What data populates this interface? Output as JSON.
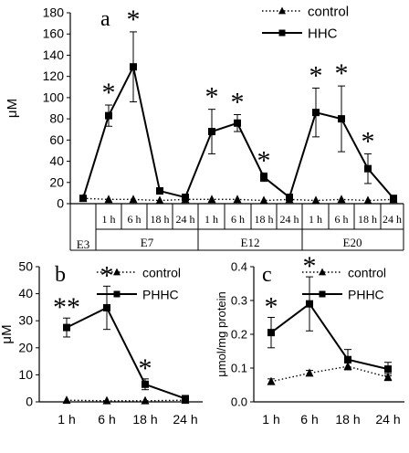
{
  "panels": {
    "a": {
      "letter": "a"
    },
    "b": {
      "letter": "b"
    },
    "c": {
      "letter": "c"
    }
  },
  "chart_data": [
    {
      "id": "a",
      "type": "line",
      "ylabel": "μM",
      "ylim": [
        0,
        180
      ],
      "yticks": [
        0,
        20,
        40,
        60,
        80,
        100,
        120,
        140,
        160,
        180
      ],
      "x_slots": [
        "E3",
        "1 h",
        "6 h",
        "18 h",
        "24 h",
        "1 h",
        "6 h",
        "18 h",
        "24 h",
        "1 h",
        "6 h",
        "18 h",
        "24 h"
      ],
      "group_labels": [
        "E3",
        "E7",
        "E12",
        "E20"
      ],
      "segments": [
        [
          0,
          4
        ],
        [
          4,
          8
        ],
        [
          8,
          12
        ]
      ],
      "legend": {
        "position": "top-right",
        "entries": [
          "control",
          "HHC"
        ]
      },
      "series": [
        {
          "name": "control",
          "marker": "triangle",
          "style": "dotted",
          "values": [
            5,
            4,
            4,
            3,
            4,
            4,
            4,
            3,
            4,
            3,
            4,
            3,
            4
          ]
        },
        {
          "name": "HHC",
          "marker": "square",
          "style": "solid",
          "values": [
            5,
            83,
            129,
            12,
            6,
            68,
            76,
            25,
            6,
            86,
            80,
            33,
            5
          ],
          "errors": [
            0,
            10,
            33,
            3,
            0,
            21,
            8,
            4,
            0,
            23,
            31,
            14,
            0
          ]
        }
      ],
      "significance": [
        {
          "slot": 1,
          "text": "*"
        },
        {
          "slot": 2,
          "text": "*"
        },
        {
          "slot": 5,
          "text": "*"
        },
        {
          "slot": 6,
          "text": "*"
        },
        {
          "slot": 7,
          "text": "*"
        },
        {
          "slot": 9,
          "text": "*"
        },
        {
          "slot": 10,
          "text": "*"
        },
        {
          "slot": 11,
          "text": "*"
        }
      ]
    },
    {
      "id": "b",
      "type": "line",
      "ylabel": "μM",
      "ylim": [
        0,
        50
      ],
      "yticks": [
        0,
        10,
        20,
        30,
        40,
        50
      ],
      "categories": [
        "1 h",
        "6 h",
        "18 h",
        "24 h"
      ],
      "legend": {
        "position": "top-right",
        "entries": [
          "control",
          "PHHC"
        ]
      },
      "series": [
        {
          "name": "control",
          "marker": "triangle",
          "style": "dotted",
          "values": [
            0.6,
            0.4,
            0.4,
            0.6
          ]
        },
        {
          "name": "PHHC",
          "marker": "square",
          "style": "solid",
          "values": [
            27.5,
            34.8,
            6.5,
            1.2
          ],
          "errors": [
            3.5,
            8,
            2,
            0.5
          ]
        }
      ],
      "significance": [
        {
          "slot": 0,
          "text": "**"
        },
        {
          "slot": 1,
          "text": "*"
        },
        {
          "slot": 2,
          "text": "*"
        }
      ]
    },
    {
      "id": "c",
      "type": "line",
      "ylabel": "μmol/mg protein",
      "ylim": [
        0,
        0.4
      ],
      "yticks": [
        0,
        0.1,
        0.2,
        0.3,
        0.4
      ],
      "ytick_labels": [
        "0.0",
        "0.1",
        "0.2",
        "0.3",
        "0.4"
      ],
      "categories": [
        "1 h",
        "6 h",
        "18 h",
        "24 h"
      ],
      "legend": {
        "position": "top-right",
        "entries": [
          "control",
          "PHHC"
        ]
      },
      "series": [
        {
          "name": "control",
          "marker": "triangle",
          "style": "dotted",
          "values": [
            0.06,
            0.085,
            0.105,
            0.073
          ],
          "errors": [
            0.008,
            0.008,
            0.01,
            0.01
          ]
        },
        {
          "name": "PHHC",
          "marker": "square",
          "style": "solid",
          "values": [
            0.205,
            0.29,
            0.125,
            0.097
          ],
          "errors": [
            0.045,
            0.08,
            0.03,
            0.02
          ]
        }
      ],
      "significance": [
        {
          "slot": 0,
          "text": "*"
        },
        {
          "slot": 1,
          "text": "*"
        }
      ]
    }
  ]
}
